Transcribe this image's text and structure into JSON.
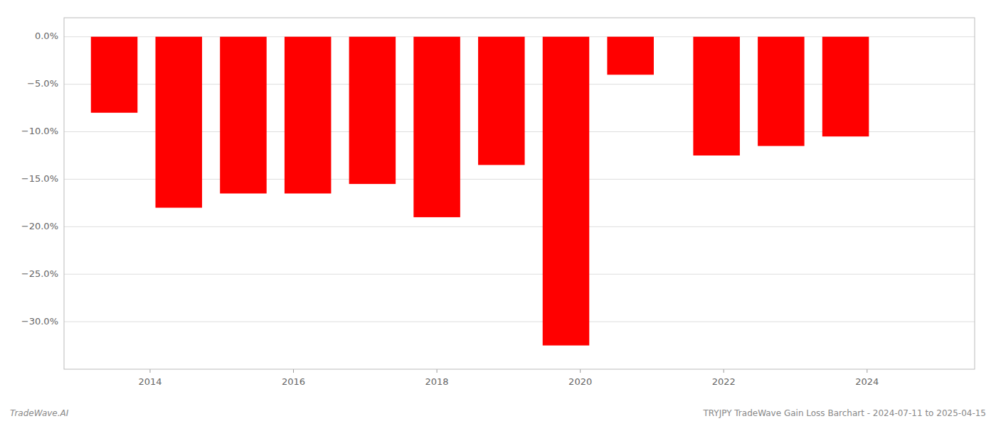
{
  "chart_data": {
    "type": "bar",
    "x": [
      2013.5,
      2014.4,
      2015.3,
      2016.2,
      2017.1,
      2018.0,
      2018.9,
      2019.8,
      2020.7,
      2021.9,
      2022.8,
      2023.7
    ],
    "values": [
      -8.0,
      -18.0,
      -16.5,
      -16.5,
      -15.5,
      -19.0,
      -13.5,
      -32.5,
      -4.0,
      -12.5,
      -11.5,
      -10.5
    ],
    "color": "#ff0000",
    "xlim": [
      2012.8,
      2025.5
    ],
    "xticks": [
      2014,
      2016,
      2018,
      2020,
      2022,
      2024
    ],
    "ylim": [
      -35,
      2.0
    ],
    "yticks": [
      {
        "value": 0.0,
        "label": "0.0%"
      },
      {
        "value": -5.0,
        "label": "−5.0%"
      },
      {
        "value": -10.0,
        "label": "−10.0%"
      },
      {
        "value": -15.0,
        "label": "−15.0%"
      },
      {
        "value": -20.0,
        "label": "−20.0%"
      },
      {
        "value": -25.0,
        "label": "−25.0%"
      },
      {
        "value": -30.0,
        "label": "−30.0%"
      }
    ],
    "grid": true,
    "annotations": [
      "TradeWave.AI",
      "TRYJPY TradeWave Gain Loss Barchart - 2024-07-11 to 2025-04-15"
    ]
  }
}
